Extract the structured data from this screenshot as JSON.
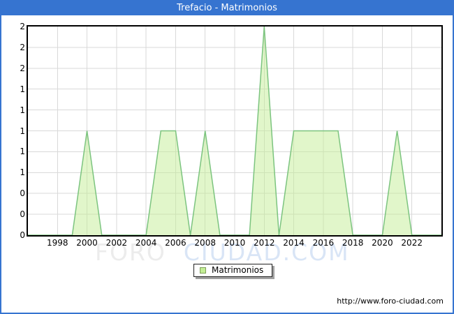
{
  "window": {
    "title": "Trefacio - Matrimonios"
  },
  "colors": {
    "accent_blue": "#3674d0",
    "title_text": "#ffffff",
    "plot_border": "#000000",
    "grid": "#d9d9d9",
    "area_fill": "#c3ee96",
    "area_fill_opacity": 0.5,
    "area_stroke": "#7cc47f",
    "legend_swatch": "#c3ee96",
    "legend_swatch_border": "#7e9e59",
    "watermark_gray": "#ececec",
    "watermark_blue": "#d9e5f6"
  },
  "chart_data": {
    "type": "area",
    "title": "Trefacio - Matrimonios",
    "xlabel": "",
    "ylabel": "",
    "grid": true,
    "legend_position": "bottom-center",
    "xlim": [
      1996,
      2024
    ],
    "ylim": [
      0,
      2
    ],
    "series": [
      {
        "name": "Matrimonios",
        "x": [
          1996,
          1997,
          1998,
          1999,
          2000,
          2001,
          2002,
          2003,
          2004,
          2005,
          2006,
          2007,
          2008,
          2009,
          2010,
          2011,
          2012,
          2013,
          2014,
          2015,
          2016,
          2017,
          2018,
          2019,
          2020,
          2021,
          2022,
          2023,
          2024
        ],
        "values": [
          0,
          0,
          0,
          0,
          1,
          0,
          0,
          0,
          0,
          1,
          1,
          0,
          1,
          0,
          0,
          0,
          2,
          0,
          1,
          1,
          1,
          1,
          0,
          0,
          0,
          1,
          0,
          0,
          0
        ]
      }
    ],
    "x_tick_years": [
      1998,
      2000,
      2002,
      2004,
      2006,
      2008,
      2010,
      2012,
      2014,
      2016,
      2018,
      2020,
      2022
    ],
    "y_tick_labels_top_to_bottom": [
      "2",
      "2",
      "2",
      "1",
      "1",
      "1",
      "1",
      "1",
      "0",
      "0",
      "0"
    ]
  },
  "legend": {
    "items": [
      {
        "label": "Matrimonios"
      }
    ]
  },
  "watermark": {
    "part1": "FORO",
    "part2": "CIUDAD.COM"
  },
  "footer": {
    "url": "http://www.foro-ciudad.com"
  }
}
